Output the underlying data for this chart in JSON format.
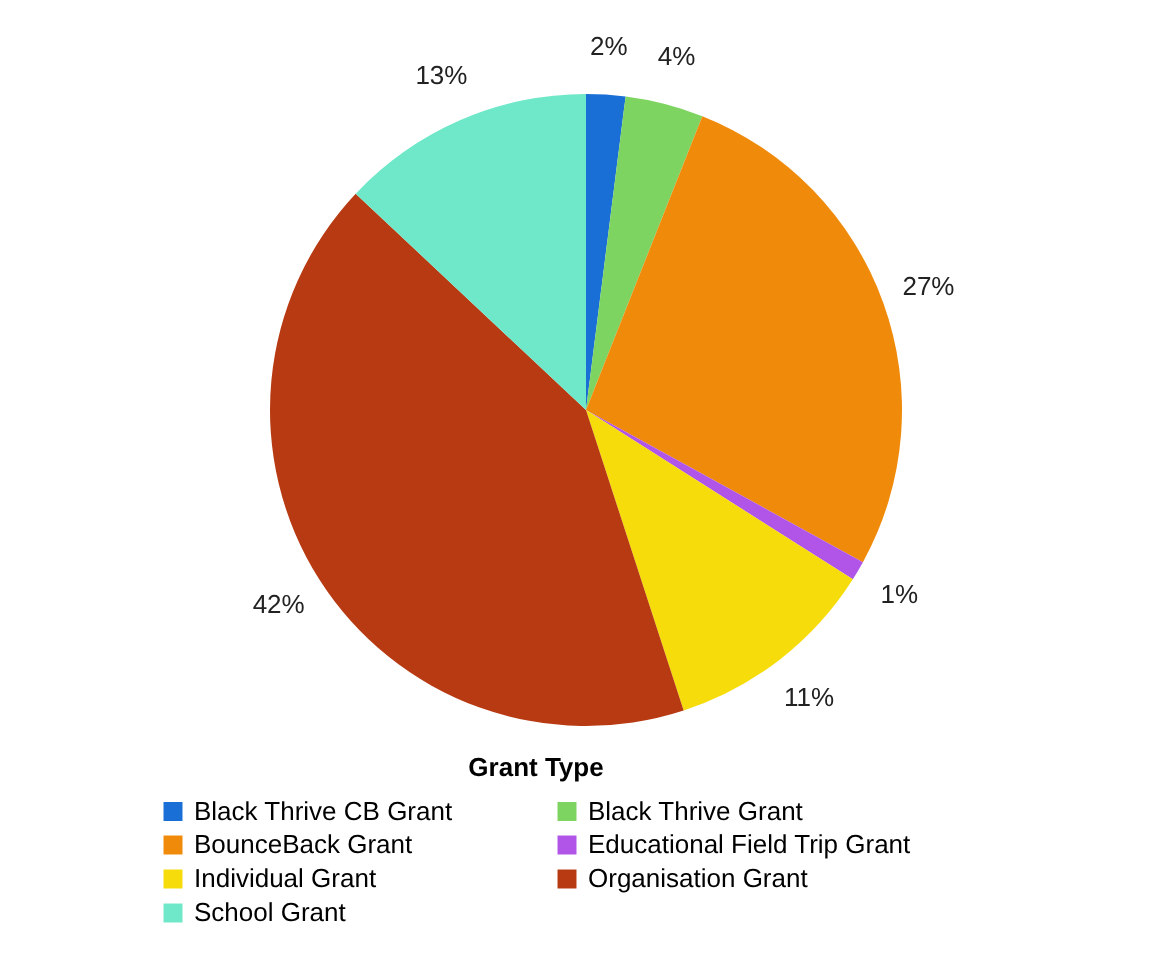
{
  "chart_data": {
    "type": "pie",
    "legend_title": "Grant Type",
    "legend": "bottom",
    "categories": [
      "Black Thrive CB Grant",
      "Black Thrive Grant",
      "BounceBack Grant",
      "Educational Field Trip Grant",
      "Individual Grant",
      "Organisation Grant",
      "School Grant"
    ],
    "values": [
      2,
      4,
      27,
      1,
      11,
      42,
      13
    ],
    "value_labels": [
      "2%",
      "4%",
      "27%",
      "1%",
      "11%",
      "42%",
      "13%"
    ],
    "colors": [
      "#1a6fd6",
      "#7ed460",
      "#f08a0a",
      "#b055e8",
      "#f5dc0a",
      "#b83a12",
      "#6ee8c8"
    ]
  }
}
